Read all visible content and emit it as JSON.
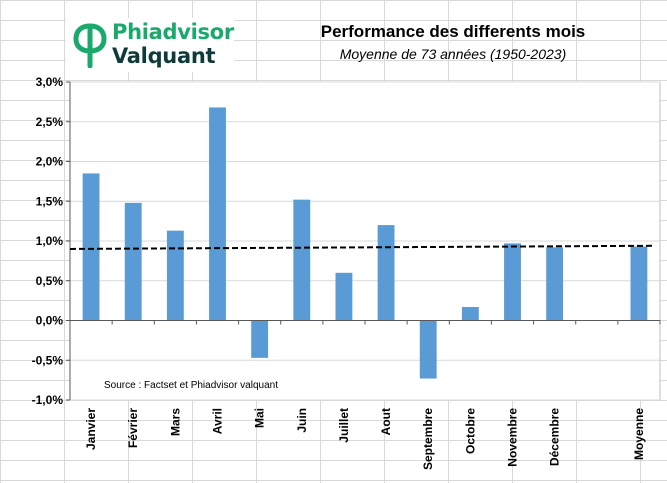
{
  "logo": {
    "line1": "Phiadvisor",
    "line2": "Valquant"
  },
  "header": {
    "title": "Performance des differents mois",
    "subtitle": "Moyenne de 73 années (1950-2023)"
  },
  "source": "Source : Factset et Phiadvisor valquant",
  "colors": {
    "bar": "#5b9bd5",
    "trend": "#000000",
    "grid": "#d9d9d9",
    "brand_green": "#1aa86b",
    "brand_dark": "#0e3b3a"
  },
  "chart_data": {
    "type": "bar",
    "title": "Performance des differents mois",
    "subtitle": "Moyenne de 73 années (1950-2023)",
    "categories": [
      "Janvier",
      "Février",
      "Mars",
      "Avril",
      "Mai",
      "Juin",
      "Juillet",
      "Aout",
      "Septembre",
      "Octobre",
      "Novembre",
      "Décembre",
      "",
      "Moyenne"
    ],
    "values": [
      1.85,
      1.48,
      1.13,
      2.68,
      -0.47,
      1.52,
      0.6,
      1.2,
      -0.73,
      0.17,
      0.97,
      0.92,
      null,
      0.93
    ],
    "y_tick_labels": [
      "-1,0%",
      "-0,5%",
      "0,0%",
      "0,5%",
      "1,0%",
      "1,5%",
      "2,0%",
      "2,5%",
      "3,0%"
    ],
    "y_ticks": [
      -1.0,
      -0.5,
      0.0,
      0.5,
      1.0,
      1.5,
      2.0,
      2.5,
      3.0
    ],
    "ylim": [
      -1.0,
      3.0
    ],
    "trendline": {
      "style": "dashed",
      "start": 0.9,
      "end": 0.94
    },
    "legend": "none",
    "grid": true
  }
}
